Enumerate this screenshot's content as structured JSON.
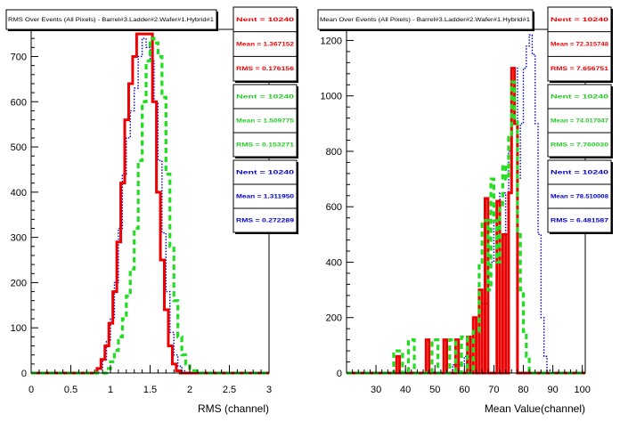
{
  "chart_data": [
    {
      "type": "histogram",
      "title": "RMS Over Events (All Pixels) - Barrel#3.Ladder#2.Wafer#1.Hybrid#1",
      "xlabel": "RMS (channel)",
      "ylabel": "",
      "xlim": [
        0,
        3
      ],
      "ylim": [
        0,
        760
      ],
      "x_ticks": [
        "0",
        "0.5",
        "1",
        "1.5",
        "2",
        "2.5",
        "3"
      ],
      "y_ticks": [
        "0",
        "100",
        "200",
        "300",
        "400",
        "500",
        "600",
        "700"
      ],
      "series": [
        {
          "color": "#0000cc",
          "style": "dotted",
          "points": [
            [
              0,
              0
            ],
            [
              0.8,
              0
            ],
            [
              0.85,
              10
            ],
            [
              0.9,
              30
            ],
            [
              0.95,
              70
            ],
            [
              1.0,
              120
            ],
            [
              1.05,
              200
            ],
            [
              1.1,
              320
            ],
            [
              1.15,
              440
            ],
            [
              1.2,
              520
            ],
            [
              1.25,
              580
            ],
            [
              1.3,
              630
            ],
            [
              1.35,
              700
            ],
            [
              1.4,
              740
            ],
            [
              1.45,
              720
            ],
            [
              1.5,
              690
            ],
            [
              1.55,
              600
            ],
            [
              1.6,
              470
            ],
            [
              1.65,
              310
            ],
            [
              1.7,
              180
            ],
            [
              1.75,
              90
            ],
            [
              1.8,
              40
            ],
            [
              1.85,
              15
            ],
            [
              1.9,
              5
            ],
            [
              1.95,
              0
            ],
            [
              3.0,
              0
            ]
          ]
        },
        {
          "color": "#ee0000",
          "style": "solid",
          "points": [
            [
              0,
              0
            ],
            [
              0.78,
              0
            ],
            [
              0.83,
              10
            ],
            [
              0.88,
              30
            ],
            [
              0.93,
              60
            ],
            [
              0.98,
              110
            ],
            [
              1.03,
              180
            ],
            [
              1.08,
              290
            ],
            [
              1.13,
              420
            ],
            [
              1.18,
              560
            ],
            [
              1.23,
              640
            ],
            [
              1.28,
              700
            ],
            [
              1.33,
              750
            ],
            [
              1.38,
              750
            ],
            [
              1.43,
              750
            ],
            [
              1.48,
              750
            ],
            [
              1.53,
              600
            ],
            [
              1.58,
              400
            ],
            [
              1.63,
              250
            ],
            [
              1.68,
              140
            ],
            [
              1.73,
              60
            ],
            [
              1.78,
              20
            ],
            [
              1.83,
              5
            ],
            [
              1.88,
              0
            ],
            [
              3.0,
              0
            ]
          ]
        },
        {
          "color": "#22dd22",
          "style": "dashed",
          "points": [
            [
              0,
              0
            ],
            [
              0.9,
              0
            ],
            [
              0.95,
              10
            ],
            [
              1.0,
              25
            ],
            [
              1.05,
              50
            ],
            [
              1.1,
              80
            ],
            [
              1.15,
              120
            ],
            [
              1.2,
              170
            ],
            [
              1.25,
              230
            ],
            [
              1.3,
              320
            ],
            [
              1.35,
              470
            ],
            [
              1.4,
              600
            ],
            [
              1.45,
              690
            ],
            [
              1.5,
              740
            ],
            [
              1.55,
              730
            ],
            [
              1.6,
              700
            ],
            [
              1.65,
              610
            ],
            [
              1.7,
              440
            ],
            [
              1.75,
              280
            ],
            [
              1.8,
              160
            ],
            [
              1.85,
              80
            ],
            [
              1.9,
              40
            ],
            [
              1.95,
              20
            ],
            [
              2.0,
              10
            ],
            [
              2.05,
              5
            ],
            [
              2.1,
              0
            ],
            [
              3.0,
              0
            ]
          ]
        }
      ],
      "stats": [
        {
          "color": "#ee0000",
          "lines": [
            "Nent = 10240",
            "Mean = 1.367152",
            "RMS = 0.176156"
          ]
        },
        {
          "color": "#22cc22",
          "lines": [
            "Nent = 10240",
            "Mean = 1.509775",
            "RMS = 0.153271"
          ]
        },
        {
          "color": "#0000cc",
          "lines": [
            "Nent = 10240",
            "Mean = 1.311950",
            "RMS = 0.272289"
          ]
        }
      ]
    },
    {
      "type": "histogram",
      "title": "Mean Over Events (All Pixels) - Barrel#3.Ladder#2.Wafer#1.Hybrid#1",
      "xlabel": "Mean Value(channel)",
      "ylabel": "",
      "xlim": [
        20,
        101
      ],
      "ylim": [
        0,
        1240
      ],
      "x_ticks": [
        "30",
        "40",
        "50",
        "60",
        "70",
        "80",
        "90",
        "100"
      ],
      "y_ticks": [
        "0",
        "200",
        "400",
        "600",
        "800",
        "1000",
        "1200"
      ],
      "series": [
        {
          "color": "#0000cc",
          "style": "dotted",
          "points": [
            [
              20,
              0
            ],
            [
              55,
              0
            ],
            [
              56,
              30
            ],
            [
              60,
              60
            ],
            [
              63,
              120
            ],
            [
              66,
              250
            ],
            [
              68,
              400
            ],
            [
              70,
              550
            ],
            [
              72,
              650
            ],
            [
              74,
              500
            ],
            [
              75,
              800
            ],
            [
              76,
              950
            ],
            [
              77,
              1100
            ],
            [
              78,
              700
            ],
            [
              79,
              900
            ],
            [
              80,
              1100
            ],
            [
              81,
              1180
            ],
            [
              82,
              1220
            ],
            [
              83,
              1150
            ],
            [
              84,
              900
            ],
            [
              85,
              500
            ],
            [
              86,
              200
            ],
            [
              87,
              60
            ],
            [
              88,
              10
            ],
            [
              89,
              0
            ],
            [
              101,
              0
            ]
          ]
        },
        {
          "color": "#ee0000",
          "style": "solid",
          "points": [
            [
              20,
              0
            ],
            [
              37,
              0
            ],
            [
              37,
              60
            ],
            [
              38,
              60
            ],
            [
              38,
              0
            ],
            [
              47,
              0
            ],
            [
              47,
              120
            ],
            [
              48,
              120
            ],
            [
              48,
              0
            ],
            [
              53,
              0
            ],
            [
              53,
              120
            ],
            [
              54,
              120
            ],
            [
              54,
              0
            ],
            [
              57,
              0
            ],
            [
              57,
              120
            ],
            [
              58,
              120
            ],
            [
              58,
              0
            ],
            [
              61,
              0
            ],
            [
              61,
              130
            ],
            [
              62,
              130
            ],
            [
              62,
              0
            ],
            [
              63,
              0
            ],
            [
              63,
              200
            ],
            [
              64,
              200
            ],
            [
              64,
              0
            ],
            [
              65,
              0
            ],
            [
              65,
              300
            ],
            [
              66,
              300
            ],
            [
              66,
              0
            ],
            [
              67,
              0
            ],
            [
              67,
              630
            ],
            [
              68,
              630
            ],
            [
              68,
              0
            ],
            [
              71,
              0
            ],
            [
              71,
              620
            ],
            [
              72,
              620
            ],
            [
              72,
              0
            ],
            [
              73,
              0
            ],
            [
              73,
              500
            ],
            [
              74,
              500
            ],
            [
              74,
              0
            ],
            [
              75,
              0
            ],
            [
              75,
              650
            ],
            [
              76,
              650
            ],
            [
              76,
              1100
            ],
            [
              77,
              1100
            ],
            [
              77,
              900
            ],
            [
              78,
              900
            ],
            [
              78,
              0
            ],
            [
              101,
              0
            ]
          ]
        },
        {
          "color": "#22dd22",
          "style": "dashed",
          "points": [
            [
              20,
              0
            ],
            [
              36,
              0
            ],
            [
              36,
              80
            ],
            [
              39,
              80
            ],
            [
              39,
              0
            ],
            [
              41,
              0
            ],
            [
              41,
              120
            ],
            [
              43,
              120
            ],
            [
              43,
              0
            ],
            [
              49,
              0
            ],
            [
              49,
              120
            ],
            [
              51,
              120
            ],
            [
              51,
              0
            ],
            [
              55,
              0
            ],
            [
              55,
              120
            ],
            [
              57,
              120
            ],
            [
              57,
              0
            ],
            [
              59,
              0
            ],
            [
              59,
              130
            ],
            [
              61,
              130
            ],
            [
              61,
              0
            ],
            [
              63,
              0
            ],
            [
              63,
              150
            ],
            [
              65,
              150
            ],
            [
              65,
              400
            ],
            [
              66,
              400
            ],
            [
              66,
              550
            ],
            [
              68,
              550
            ],
            [
              68,
              300
            ],
            [
              69,
              300
            ],
            [
              69,
              700
            ],
            [
              70,
              700
            ],
            [
              70,
              550
            ],
            [
              71,
              550
            ],
            [
              71,
              400
            ],
            [
              72,
              400
            ],
            [
              72,
              600
            ],
            [
              73,
              600
            ],
            [
              73,
              750
            ],
            [
              74,
              750
            ],
            [
              74,
              700
            ],
            [
              75,
              700
            ],
            [
              75,
              850
            ],
            [
              76,
              850
            ],
            [
              76,
              1050
            ],
            [
              77,
              1050
            ],
            [
              77,
              920
            ],
            [
              78,
              920
            ],
            [
              78,
              500
            ],
            [
              79,
              500
            ],
            [
              79,
              300
            ],
            [
              80,
              300
            ],
            [
              80,
              150
            ],
            [
              81,
              150
            ],
            [
              81,
              60
            ],
            [
              82,
              60
            ],
            [
              82,
              0
            ],
            [
              101,
              0
            ]
          ]
        }
      ],
      "stats": [
        {
          "color": "#ee0000",
          "lines": [
            "Nent = 10240",
            "Mean = 72.315748",
            "RMS = 7.656751"
          ]
        },
        {
          "color": "#22cc22",
          "lines": [
            "Nent = 10240",
            "Mean = 74.017047",
            "RMS = 7.760030"
          ]
        },
        {
          "color": "#0000cc",
          "lines": [
            "Nent = 10240",
            "Mean = 78.510008",
            "RMS = 6.481587"
          ]
        }
      ]
    }
  ]
}
